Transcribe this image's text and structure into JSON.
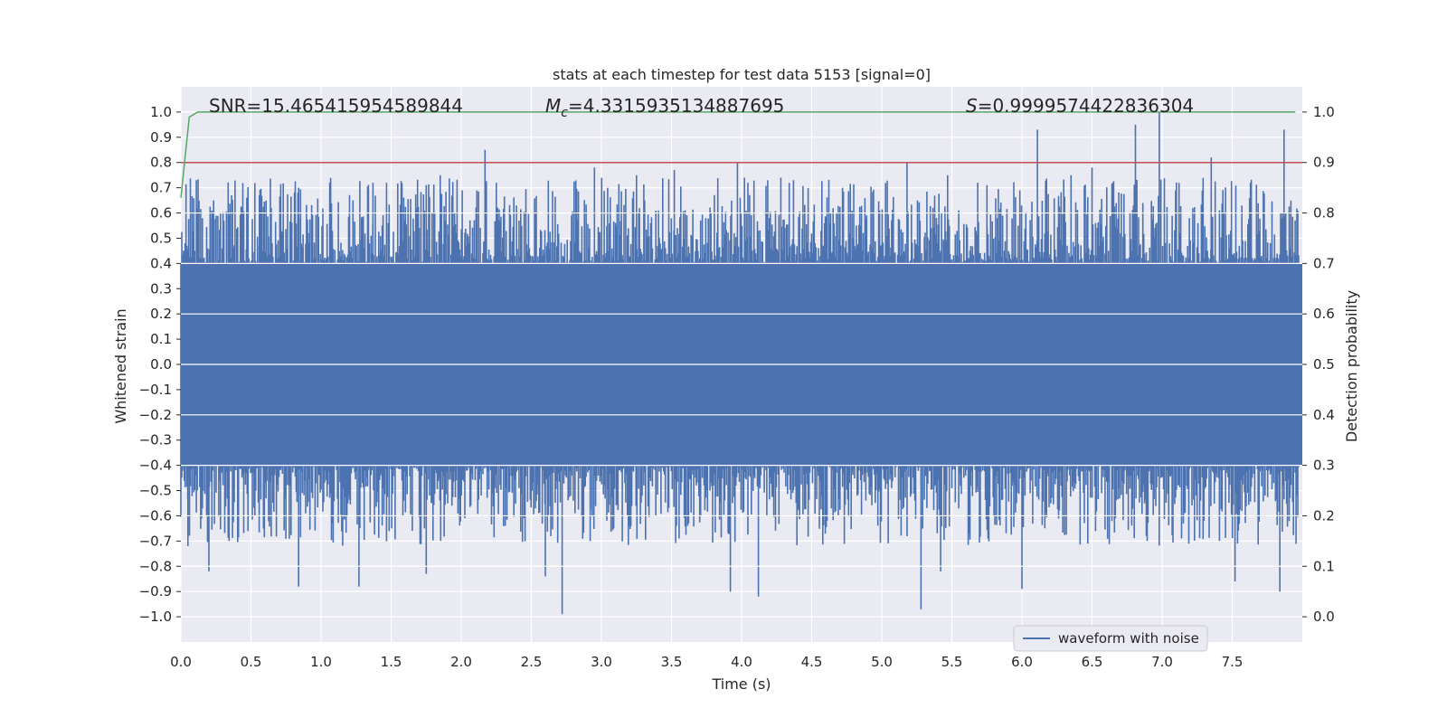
{
  "chart_data": {
    "type": "line",
    "title": "stats at each timestep for test data 5153 [signal=0]",
    "xlabel": "Time (s)",
    "ylabel": "Whitened strain",
    "y2label": "Detection probability",
    "xlim": [
      0.0,
      8.0
    ],
    "ylim": [
      -1.1,
      1.1
    ],
    "y2lim": [
      -0.05,
      1.05
    ],
    "grid": true,
    "x_ticks": [
      "0.0",
      "0.5",
      "1.0",
      "1.5",
      "2.0",
      "2.5",
      "3.0",
      "3.5",
      "4.0",
      "4.5",
      "5.0",
      "5.5",
      "6.0",
      "6.5",
      "7.0",
      "7.5"
    ],
    "y_ticks": [
      "1.0",
      "0.9",
      "0.8",
      "0.7",
      "0.6",
      "0.5",
      "0.4",
      "0.3",
      "0.2",
      "0.1",
      "0.0",
      "−0.1",
      "−0.2",
      "−0.3",
      "−0.4",
      "−0.5",
      "−0.6",
      "−0.7",
      "−0.8",
      "−0.9",
      "−1.0"
    ],
    "y2_ticks": [
      "1.0",
      "0.9",
      "0.8",
      "0.7",
      "0.6",
      "0.5",
      "0.4",
      "0.3",
      "0.2",
      "0.1",
      "0.0"
    ],
    "annotations": {
      "snr": "SNR=15.465415954589844",
      "mc_symbol": "M",
      "mc_sub": "c",
      "mc_value": "=4.3315935134887695",
      "s_symbol": "S",
      "s_value": "=0.9999574422836304"
    },
    "legend": {
      "label": "waveform with noise",
      "placement": "lower-right"
    },
    "threshold": {
      "value": 0.9,
      "axis": "right",
      "color": "#c44e52"
    },
    "series": [
      {
        "name": "waveform with noise",
        "axis": "left",
        "color": "#4c72b0",
        "band": {
          "min": -0.4,
          "max": 0.4
        },
        "peaks_pos": [
          [
            0.03,
            0.48
          ],
          [
            0.22,
            0.58
          ],
          [
            0.47,
            0.66
          ],
          [
            0.56,
            0.67
          ],
          [
            0.84,
            0.7
          ],
          [
            1.2,
            0.57
          ],
          [
            1.37,
            0.72
          ],
          [
            1.75,
            0.71
          ],
          [
            1.85,
            0.75
          ],
          [
            2.17,
            0.85
          ],
          [
            2.25,
            0.72
          ],
          [
            2.95,
            0.78
          ],
          [
            3.25,
            0.75
          ],
          [
            3.52,
            0.77
          ],
          [
            3.97,
            0.8
          ],
          [
            4.28,
            0.74
          ],
          [
            4.37,
            0.73
          ],
          [
            4.72,
            0.7
          ],
          [
            5.18,
            0.8
          ],
          [
            5.47,
            0.75
          ],
          [
            5.75,
            0.71
          ],
          [
            6.11,
            0.93
          ],
          [
            6.35,
            0.75
          ],
          [
            6.5,
            0.78
          ],
          [
            6.81,
            0.95
          ],
          [
            6.98,
            1.0
          ],
          [
            7.35,
            0.82
          ],
          [
            7.63,
            0.72
          ],
          [
            7.87,
            0.93
          ]
        ],
        "peaks_neg": [
          [
            0.2,
            -0.82
          ],
          [
            0.84,
            -0.88
          ],
          [
            1.27,
            -0.88
          ],
          [
            1.75,
            -0.83
          ],
          [
            2.6,
            -0.84
          ],
          [
            2.72,
            -0.99
          ],
          [
            2.92,
            -0.7
          ],
          [
            3.92,
            -0.9
          ],
          [
            4.12,
            -0.92
          ],
          [
            5.28,
            -0.97
          ],
          [
            5.42,
            -0.82
          ],
          [
            6.0,
            -0.89
          ],
          [
            7.19,
            -0.71
          ],
          [
            7.52,
            -0.86
          ],
          [
            7.84,
            -0.9
          ],
          [
            0.05,
            -0.72
          ]
        ]
      },
      {
        "name": "Detection probability",
        "axis": "right",
        "color": "#55a868",
        "x": [
          0.0,
          0.06,
          0.12,
          0.2,
          1.0,
          2.0,
          3.0,
          4.0,
          5.0,
          6.0,
          7.0,
          7.95
        ],
        "values": [
          0.83,
          0.99,
          1.0,
          1.0,
          1.0,
          1.0,
          1.0,
          1.0,
          1.0,
          1.0,
          1.0,
          1.0
        ]
      }
    ]
  }
}
